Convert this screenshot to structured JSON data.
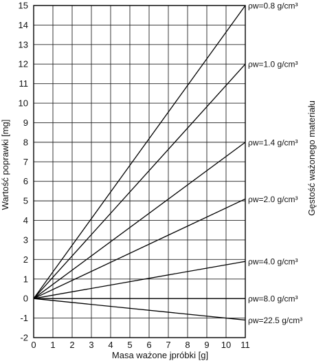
{
  "chart_data": {
    "type": "line",
    "xlabel": "Masa ważone jpróbki [g]",
    "ylabel": "Wartość poprawki [mg]",
    "right_label": "Gęstość ważonego materiału",
    "xlim": [
      0,
      11
    ],
    "ylim": [
      -2,
      15
    ],
    "x_ticks": [
      0,
      1,
      2,
      3,
      4,
      5,
      6,
      7,
      8,
      9,
      10,
      11
    ],
    "y_ticks": [
      -2,
      -1,
      0,
      1,
      2,
      3,
      4,
      5,
      6,
      7,
      8,
      9,
      10,
      11,
      12,
      13,
      14,
      15
    ],
    "grid": true,
    "series": [
      {
        "name": "ρw=0.8 g/cm³",
        "x": [
          0,
          11
        ],
        "y": [
          0,
          15
        ]
      },
      {
        "name": "ρw=1.0 g/cm³",
        "x": [
          0,
          11
        ],
        "y": [
          0,
          12
        ]
      },
      {
        "name": "ρw=1.4 g/cm³",
        "x": [
          0,
          11
        ],
        "y": [
          0,
          8
        ]
      },
      {
        "name": "ρw=2.0 g/cm³",
        "x": [
          0,
          11
        ],
        "y": [
          0,
          5.1
        ]
      },
      {
        "name": "ρw=4.0 g/cm³",
        "x": [
          0,
          11
        ],
        "y": [
          0,
          1.9
        ]
      },
      {
        "name": "ρw=8.0 g/cm³",
        "x": [
          0,
          11
        ],
        "y": [
          0,
          0
        ]
      },
      {
        "name": "ρw=22.5 g/cm³",
        "x": [
          0,
          11
        ],
        "y": [
          0,
          -1.1
        ]
      }
    ]
  }
}
